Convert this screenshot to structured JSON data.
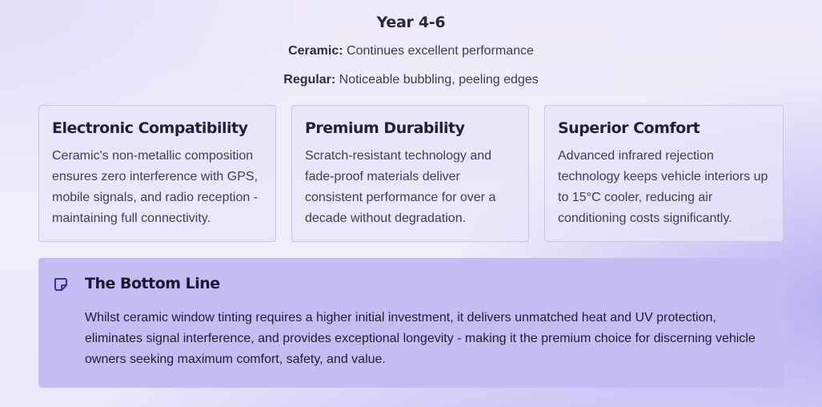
{
  "year": {
    "title": "Year 4-6",
    "ceramic_label": "Ceramic:",
    "ceramic_text": "Continues excellent performance",
    "regular_label": "Regular:",
    "regular_text": "Noticeable bubbling, peeling edges"
  },
  "cards": [
    {
      "title": "Electronic Compatibility",
      "text": "Ceramic's non-metallic composition ensures zero interference with GPS, mobile signals, and radio reception - maintaining full connectivity."
    },
    {
      "title": "Premium Durability",
      "text": "Scratch-resistant technology and fade-proof materials deliver consistent performance for over a decade without degradation."
    },
    {
      "title": "Superior Comfort",
      "text": "Advanced infrared rejection technology keeps vehicle interiors up to 15°C cooler, reducing air conditioning costs significantly."
    }
  ],
  "bottom_line": {
    "icon": "note-icon",
    "title": "The Bottom Line",
    "text": "Whilst ceramic window tinting requires a higher initial investment, it delivers unmatched heat and UV protection, eliminates signal interference, and provides exceptional longevity - making it the premium choice for discerning vehicle owners seeking maximum comfort, safety, and value."
  },
  "colors": {
    "accent": "#3b2fa8",
    "bottom_bg": "#c4bdf4",
    "card_border": "#c9c2ea"
  }
}
